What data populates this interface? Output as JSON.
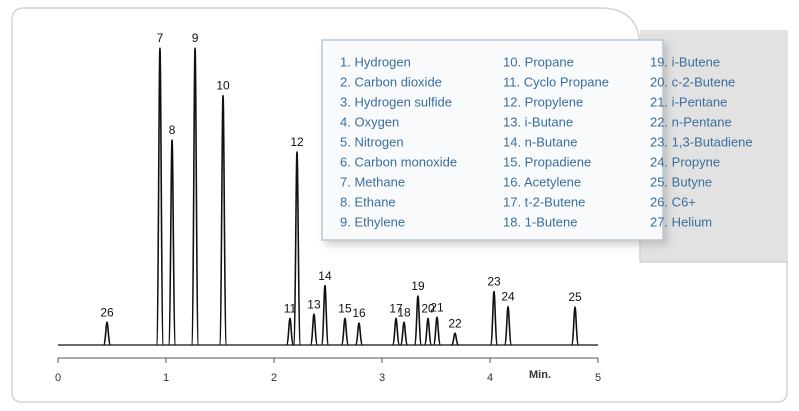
{
  "chart_data": {
    "type": "chromatogram",
    "x_label": "Min.",
    "xlim": [
      0,
      5
    ],
    "xticks": [
      0,
      1,
      2,
      3,
      4,
      5
    ],
    "ylim": [
      0,
      100
    ],
    "color": "#111111",
    "peaks": [
      {
        "label": 26,
        "time": 0.454,
        "height": 7.7
      },
      {
        "label": 7,
        "time": 0.944,
        "height": 100
      },
      {
        "label": 8,
        "time": 1.056,
        "height": 69
      },
      {
        "label": 9,
        "time": 1.269,
        "height": 100
      },
      {
        "label": 10,
        "time": 1.528,
        "height": 84
      },
      {
        "label": 11,
        "time": 2.148,
        "height": 9
      },
      {
        "label": 12,
        "time": 2.213,
        "height": 65
      },
      {
        "label": 13,
        "time": 2.37,
        "height": 10.4
      },
      {
        "label": 14,
        "time": 2.472,
        "height": 20
      },
      {
        "label": 15,
        "time": 2.657,
        "height": 9
      },
      {
        "label": 16,
        "time": 2.787,
        "height": 7.4
      },
      {
        "label": 17,
        "time": 3.13,
        "height": 9
      },
      {
        "label": 18,
        "time": 3.204,
        "height": 7.7
      },
      {
        "label": 19,
        "time": 3.333,
        "height": 16.5
      },
      {
        "label": 20,
        "time": 3.426,
        "height": 9
      },
      {
        "label": 21,
        "time": 3.509,
        "height": 9.4
      },
      {
        "label": 22,
        "time": 3.676,
        "height": 4
      },
      {
        "label": 23,
        "time": 4.037,
        "height": 18
      },
      {
        "label": 24,
        "time": 4.167,
        "height": 13
      },
      {
        "label": 25,
        "time": 4.787,
        "height": 12.8
      }
    ],
    "legend_items": [
      "1. Hydrogen",
      "2. Carbon dioxide",
      "3. Hydrogen sulfide",
      "4. Oxygen",
      "5. Nitrogen",
      "6. Carbon monoxide",
      "7. Methane",
      "8. Ethane",
      "9. Ethylene",
      "10. Propane",
      "11. Cyclo Propane",
      "12. Propylene",
      "13. i-Butane",
      "14. n-Butane",
      "15. Propadiene",
      "16. Acetylene",
      "17. t-2-Butene",
      "18. 1-Butene",
      "19. i-Butene",
      "20. c-2-Butene",
      "21. i-Pentane",
      "22. n-Pentane",
      "23. 1,3-Butadiene",
      "24. Propyne",
      "25. Butyne",
      "26. C6+",
      "27. Helium"
    ]
  }
}
